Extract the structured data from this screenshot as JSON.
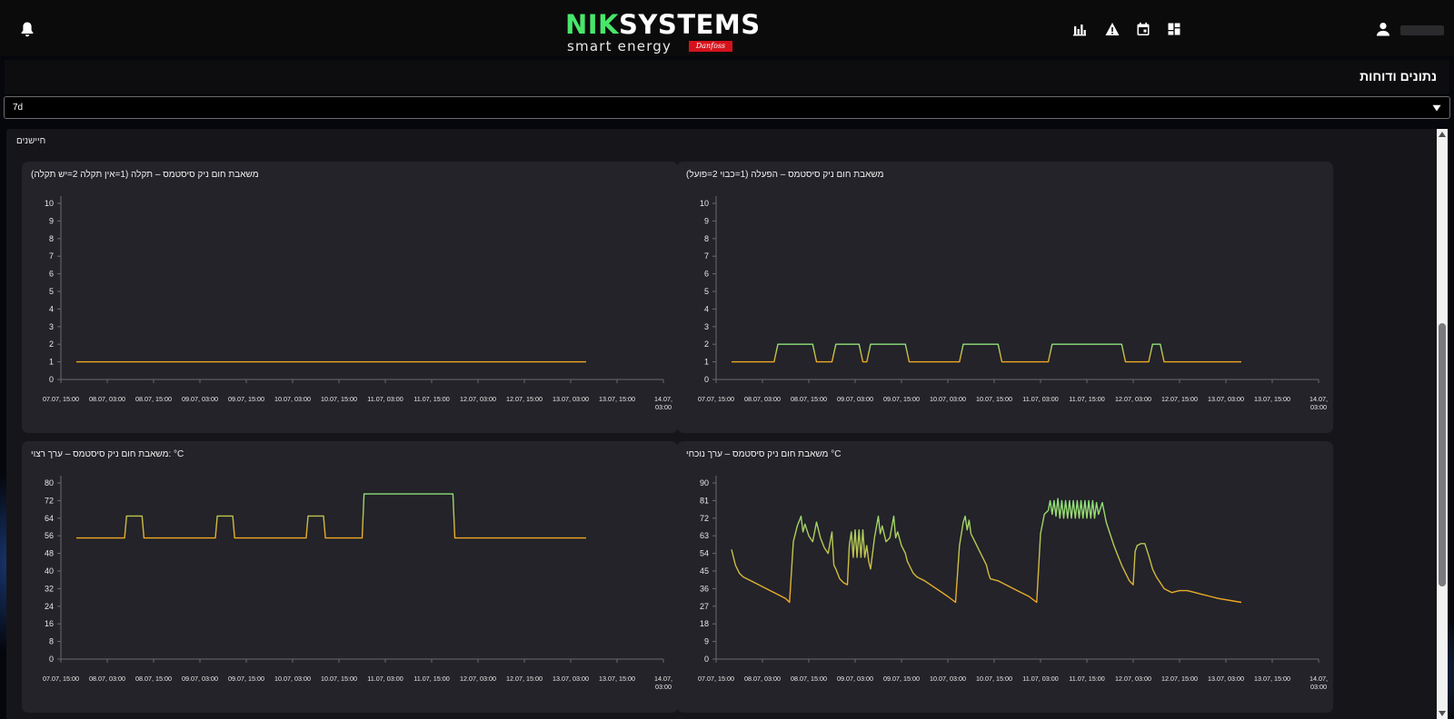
{
  "header": {
    "logo": {
      "brand_a": "NIK",
      "brand_b": "SYSTEMS",
      "tagline": "smart energy",
      "partner": "Danfoss"
    },
    "icons": [
      "bell-icon",
      "bar-chart-icon",
      "warning-icon",
      "calendar-icon",
      "dashboard-icon",
      "user-icon"
    ]
  },
  "page": {
    "title": "נתונים ודוחות"
  },
  "range_select": {
    "value": "7d"
  },
  "panel": {
    "title": "חיישנים"
  },
  "colors": {
    "low": "#f0a824",
    "high": "#8ee07a",
    "background": "#232329",
    "accent_logo": "#49e66b"
  },
  "x_axis_labels": [
    "07.07, 15:00",
    "08.07, 03:00",
    "08.07, 15:00",
    "09.07, 03:00",
    "09.07, 15:00",
    "10.07, 03:00",
    "10.07, 15:00",
    "11.07, 03:00",
    "11.07, 15:00",
    "12.07, 03:00",
    "12.07, 15:00",
    "13.07, 03:00",
    "13.07, 15:00",
    "14.07, 03:00"
  ],
  "chart_data": [
    {
      "type": "line",
      "title": "משאבת חום ניק סיסטמס – תקלה (1=אין תקלה 2=יש תקלה)",
      "ylim": [
        0,
        10
      ],
      "yticks": [
        0,
        1,
        2,
        3,
        4,
        5,
        6,
        7,
        8,
        9,
        10
      ],
      "x_span_hours": [
        0,
        156
      ],
      "points": [
        [
          4,
          1
        ],
        [
          136,
          1
        ]
      ]
    },
    {
      "type": "line",
      "title": "משאבת חום ניק סיסטמס – הפעלה (1=כבוי 2=פועל)",
      "ylim": [
        0,
        10
      ],
      "yticks": [
        0,
        1,
        2,
        3,
        4,
        5,
        6,
        7,
        8,
        9,
        10
      ],
      "x_span_hours": [
        0,
        156
      ],
      "points": [
        [
          4,
          1
        ],
        [
          15,
          1
        ],
        [
          16,
          2
        ],
        [
          25,
          2
        ],
        [
          26,
          1
        ],
        [
          30,
          1
        ],
        [
          31,
          2
        ],
        [
          37,
          2
        ],
        [
          38,
          1
        ],
        [
          39,
          1
        ],
        [
          40,
          2
        ],
        [
          49,
          2
        ],
        [
          50,
          1
        ],
        [
          63,
          1
        ],
        [
          64,
          2
        ],
        [
          73,
          2
        ],
        [
          74,
          1
        ],
        [
          86,
          1
        ],
        [
          87,
          2
        ],
        [
          105,
          2
        ],
        [
          106,
          1
        ],
        [
          112,
          1
        ],
        [
          113,
          2
        ],
        [
          115,
          2
        ],
        [
          116,
          1
        ],
        [
          136,
          1
        ]
      ]
    },
    {
      "type": "line",
      "title": "משאבת חום ניק סיסטמס – ערך רצוי: °C",
      "ylim": [
        0,
        80
      ],
      "yticks": [
        0,
        8,
        16,
        24,
        32,
        40,
        48,
        56,
        64,
        72,
        80
      ],
      "x_span_hours": [
        0,
        156
      ],
      "points": [
        [
          4,
          55
        ],
        [
          16.5,
          55
        ],
        [
          17,
          65
        ],
        [
          21,
          65
        ],
        [
          21.5,
          55
        ],
        [
          40,
          55
        ],
        [
          40.5,
          65
        ],
        [
          44.5,
          65
        ],
        [
          45,
          55
        ],
        [
          63.5,
          55
        ],
        [
          64,
          65
        ],
        [
          68,
          65
        ],
        [
          68.5,
          55
        ],
        [
          78,
          55
        ],
        [
          78.5,
          75
        ],
        [
          101.5,
          75
        ],
        [
          102,
          55
        ],
        [
          136,
          55
        ]
      ]
    },
    {
      "type": "line",
      "title": "משאבת חום ניק סיסטמס – ערך נוכחי °C",
      "ylim": [
        0,
        90
      ],
      "yticks": [
        0,
        9,
        18,
        27,
        36,
        45,
        54,
        63,
        72,
        81,
        90
      ],
      "x_span_hours": [
        0,
        156
      ],
      "points": [
        [
          4,
          56
        ],
        [
          5,
          48
        ],
        [
          6,
          44
        ],
        [
          7,
          42
        ],
        [
          9,
          40
        ],
        [
          12,
          37
        ],
        [
          15,
          34
        ],
        [
          18,
          31
        ],
        [
          19,
          29
        ],
        [
          20,
          60
        ],
        [
          21,
          68
        ],
        [
          22,
          73
        ],
        [
          22.5,
          65
        ],
        [
          23,
          69
        ],
        [
          24,
          63
        ],
        [
          25,
          60
        ],
        [
          26,
          70
        ],
        [
          27,
          62
        ],
        [
          28,
          57
        ],
        [
          29,
          54
        ],
        [
          30,
          65
        ],
        [
          30.5,
          48
        ],
        [
          31,
          46
        ],
        [
          32,
          41
        ],
        [
          33,
          39
        ],
        [
          34,
          38
        ],
        [
          34.5,
          58
        ],
        [
          35,
          65
        ],
        [
          35.5,
          52
        ],
        [
          36,
          66
        ],
        [
          36.5,
          52
        ],
        [
          37,
          66
        ],
        [
          37.5,
          52
        ],
        [
          38,
          66
        ],
        [
          38.5,
          52
        ],
        [
          39,
          58
        ],
        [
          39.5,
          50
        ],
        [
          40,
          46
        ],
        [
          41,
          62
        ],
        [
          42,
          73
        ],
        [
          42.5,
          64
        ],
        [
          43,
          68
        ],
        [
          44,
          60
        ],
        [
          45,
          62
        ],
        [
          46,
          73
        ],
        [
          46.5,
          62
        ],
        [
          47,
          65
        ],
        [
          48,
          58
        ],
        [
          49,
          54
        ],
        [
          49.5,
          50
        ],
        [
          50,
          48
        ],
        [
          51,
          44
        ],
        [
          52,
          42
        ],
        [
          54,
          40
        ],
        [
          57,
          36
        ],
        [
          60,
          32
        ],
        [
          62,
          29
        ],
        [
          63,
          58
        ],
        [
          64,
          70
        ],
        [
          64.5,
          73
        ],
        [
          65,
          66
        ],
        [
          65.5,
          71
        ],
        [
          66,
          64
        ],
        [
          67,
          60
        ],
        [
          68,
          56
        ],
        [
          69,
          52
        ],
        [
          70,
          48
        ],
        [
          70.5,
          44
        ],
        [
          71,
          41
        ],
        [
          73,
          40
        ],
        [
          75,
          38
        ],
        [
          78,
          35
        ],
        [
          81,
          32
        ],
        [
          83,
          29
        ],
        [
          84,
          64
        ],
        [
          85,
          74
        ],
        [
          86,
          76
        ],
        [
          86.5,
          81
        ],
        [
          87,
          74
        ],
        [
          87.5,
          81
        ],
        [
          88,
          73
        ],
        [
          88.5,
          82
        ],
        [
          89,
          72
        ],
        [
          89.5,
          81
        ],
        [
          90,
          72
        ],
        [
          90.5,
          81
        ],
        [
          91,
          72
        ],
        [
          91.5,
          81
        ],
        [
          92,
          72
        ],
        [
          92.5,
          81
        ],
        [
          93,
          72
        ],
        [
          93.5,
          81
        ],
        [
          94,
          72
        ],
        [
          94.5,
          81
        ],
        [
          95,
          72
        ],
        [
          95.5,
          81
        ],
        [
          96,
          72
        ],
        [
          96.5,
          81
        ],
        [
          97,
          72
        ],
        [
          97.5,
          81
        ],
        [
          98,
          72
        ],
        [
          98.5,
          80
        ],
        [
          99,
          74
        ],
        [
          100,
          80
        ],
        [
          101,
          70
        ],
        [
          102,
          64
        ],
        [
          103,
          58
        ],
        [
          104,
          53
        ],
        [
          105,
          48
        ],
        [
          106,
          44
        ],
        [
          107,
          40
        ],
        [
          108,
          38
        ],
        [
          108.5,
          55
        ],
        [
          109,
          58
        ],
        [
          110,
          59
        ],
        [
          111,
          59
        ],
        [
          112,
          53
        ],
        [
          113,
          46
        ],
        [
          114,
          42
        ],
        [
          115,
          39
        ],
        [
          116,
          36
        ],
        [
          117,
          35
        ],
        [
          118,
          34
        ],
        [
          120,
          35
        ],
        [
          122,
          35
        ],
        [
          124,
          34
        ],
        [
          126,
          33
        ],
        [
          128,
          32
        ],
        [
          130,
          31
        ],
        [
          136,
          29
        ]
      ]
    }
  ]
}
